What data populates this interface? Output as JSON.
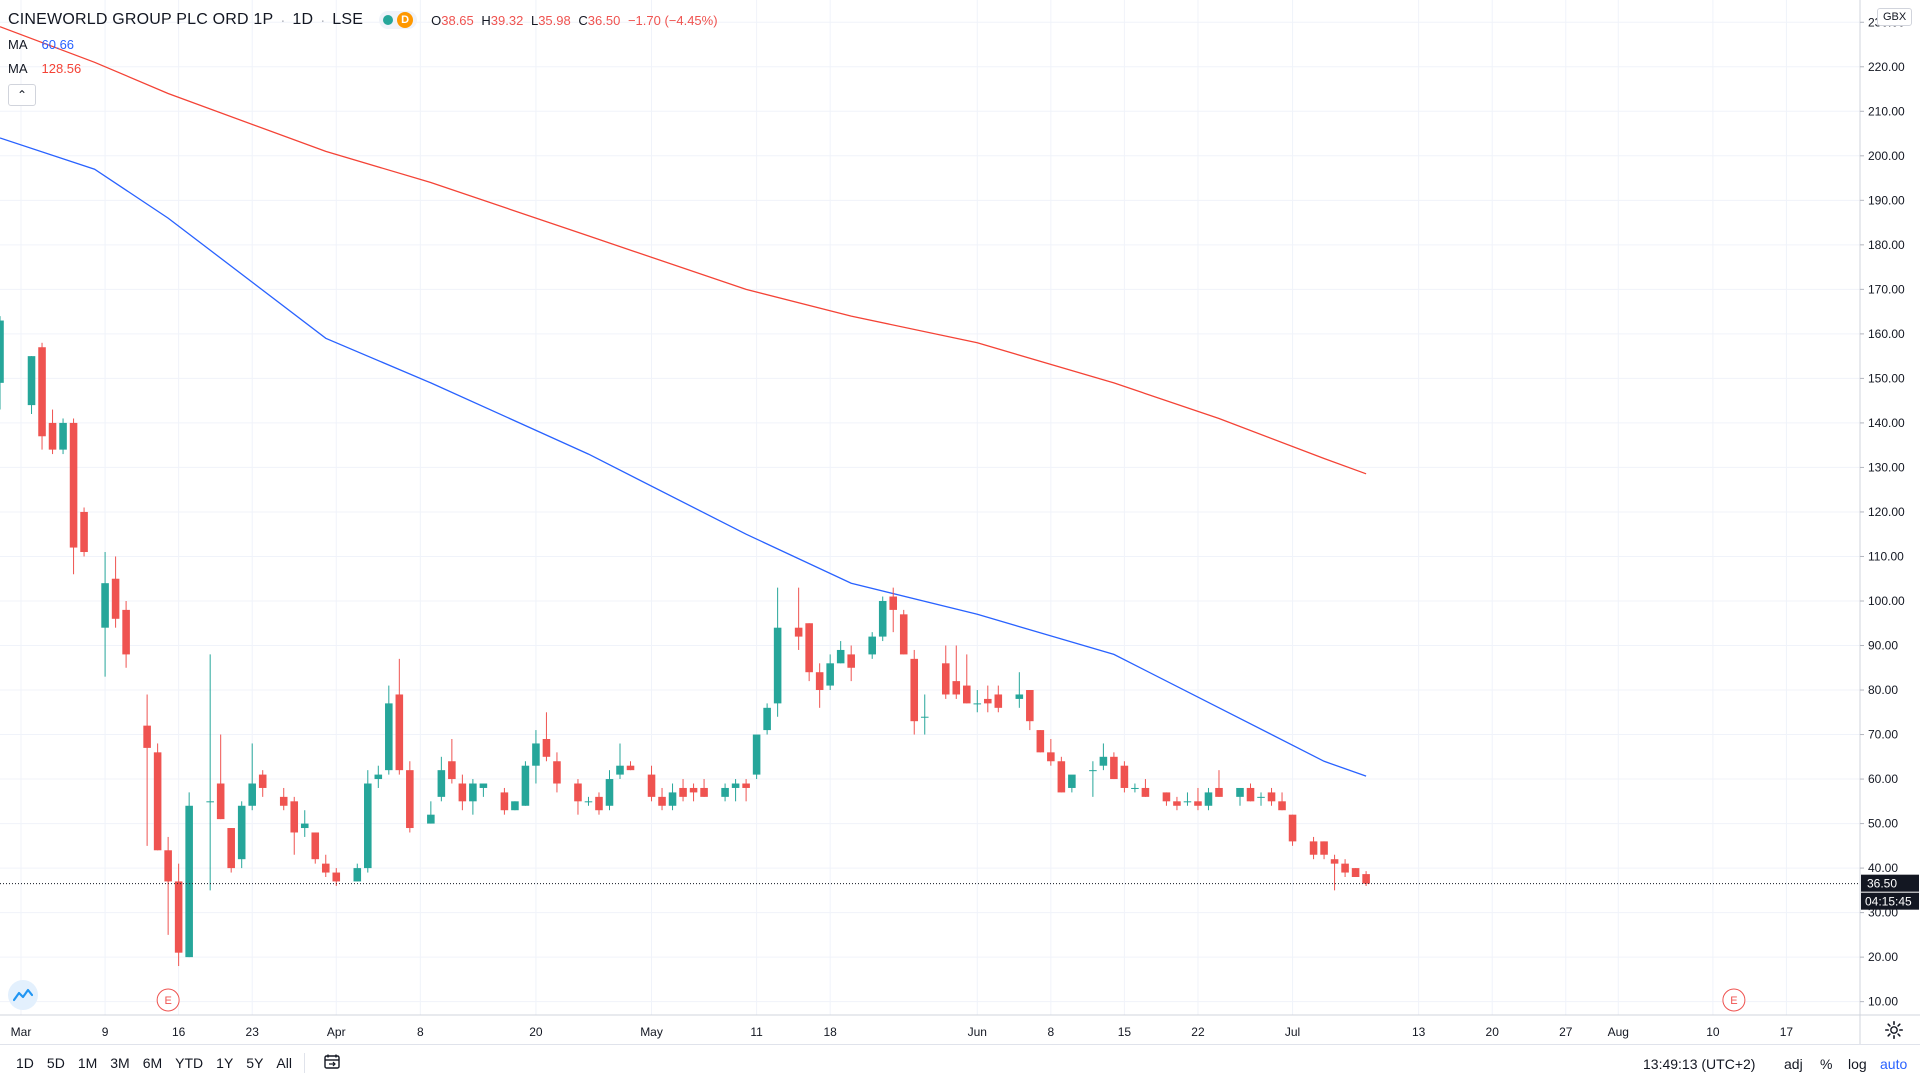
{
  "header": {
    "symbol": "CINEWORLD GROUP PLC ORD 1P",
    "interval": "1D",
    "exchange": "LSE",
    "d_label": "D",
    "ohlc": {
      "o_key": "O",
      "o_val": "38.65",
      "h_key": "H",
      "h_val": "39.32",
      "l_key": "L",
      "l_val": "35.98",
      "c_key": "C",
      "c_val": "36.50",
      "change": "−1.70 (−4.45%)"
    }
  },
  "indicators": [
    {
      "label": "MA",
      "value": "60.66",
      "color": "#2962ff"
    },
    {
      "label": "MA",
      "value": "128.56",
      "color": "#f44336"
    }
  ],
  "currency": "GBX",
  "last_price": {
    "value": "36.50",
    "countdown": "04:15:45"
  },
  "bottom": {
    "ranges": [
      "1D",
      "5D",
      "1M",
      "3M",
      "6M",
      "YTD",
      "1Y",
      "5Y",
      "All"
    ],
    "time": "13:49:13 (UTC+2)",
    "adj": "adj",
    "percent": "%",
    "log": "log",
    "auto": "auto"
  },
  "chart_data": {
    "type": "candlestick",
    "title": "CINEWORLD GROUP PLC ORD 1P · 1D · LSE",
    "ylabel": "GBX",
    "ylim": [
      7,
      235
    ],
    "y_ticks": [
      10,
      20,
      30,
      40,
      50,
      60,
      70,
      80,
      90,
      100,
      110,
      120,
      130,
      140,
      150,
      160,
      170,
      180,
      190,
      200,
      210,
      220,
      230
    ],
    "x_ticks": [
      {
        "day": 1,
        "label": "Mar"
      },
      {
        "day": 9,
        "label": "9"
      },
      {
        "day": 16,
        "label": "16"
      },
      {
        "day": 23,
        "label": "23"
      },
      {
        "day": 31,
        "label": "Apr"
      },
      {
        "day": 39,
        "label": "8"
      },
      {
        "day": 50,
        "label": "20"
      },
      {
        "day": 61,
        "label": "May"
      },
      {
        "day": 71,
        "label": "11"
      },
      {
        "day": 78,
        "label": "18"
      },
      {
        "day": 92,
        "label": "Jun"
      },
      {
        "day": 99,
        "label": "8"
      },
      {
        "day": 106,
        "label": "15"
      },
      {
        "day": 113,
        "label": "22"
      },
      {
        "day": 122,
        "label": "Jul"
      },
      {
        "day": 134,
        "label": "13"
      },
      {
        "day": 141,
        "label": "20"
      },
      {
        "day": 148,
        "label": "27"
      },
      {
        "day": 153,
        "label": "Aug"
      },
      {
        "day": 162,
        "label": "10"
      },
      {
        "day": 169,
        "label": "17"
      }
    ],
    "xlim": [
      -1,
      176
    ],
    "candles": [
      {
        "d": -1,
        "o": 149,
        "h": 164,
        "l": 143,
        "c": 163
      },
      {
        "d": 2,
        "o": 144,
        "h": 155,
        "l": 142,
        "c": 155
      },
      {
        "d": 3,
        "o": 157,
        "h": 158,
        "l": 134,
        "c": 137
      },
      {
        "d": 4,
        "o": 140,
        "h": 143,
        "l": 133,
        "c": 134
      },
      {
        "d": 5,
        "o": 134,
        "h": 141,
        "l": 133,
        "c": 140
      },
      {
        "d": 6,
        "o": 140,
        "h": 141,
        "l": 106,
        "c": 112
      },
      {
        "d": 7,
        "o": 120,
        "h": 121,
        "l": 110,
        "c": 111
      },
      {
        "d": 9,
        "o": 94,
        "h": 111,
        "l": 83,
        "c": 104
      },
      {
        "d": 10,
        "o": 105,
        "h": 110,
        "l": 94,
        "c": 96
      },
      {
        "d": 11,
        "o": 98,
        "h": 100,
        "l": 85,
        "c": 88
      },
      {
        "d": 13,
        "o": 72,
        "h": 79,
        "l": 45,
        "c": 67
      },
      {
        "d": 14,
        "o": 66,
        "h": 68,
        "l": 44,
        "c": 44
      },
      {
        "d": 15,
        "o": 44,
        "h": 47,
        "l": 25,
        "c": 37
      },
      {
        "d": 16,
        "o": 37,
        "h": 41,
        "l": 18,
        "c": 21
      },
      {
        "d": 17,
        "o": 20,
        "h": 57,
        "l": 20,
        "c": 54
      },
      {
        "d": 19,
        "o": 55,
        "h": 88,
        "l": 35,
        "c": 55
      },
      {
        "d": 20,
        "o": 59,
        "h": 70,
        "l": 51,
        "c": 51
      },
      {
        "d": 21,
        "o": 49,
        "h": 49,
        "l": 39,
        "c": 40
      },
      {
        "d": 22,
        "o": 42,
        "h": 55,
        "l": 40,
        "c": 54
      },
      {
        "d": 23,
        "o": 54,
        "h": 68,
        "l": 53,
        "c": 59
      },
      {
        "d": 24,
        "o": 61,
        "h": 62,
        "l": 56,
        "c": 58
      },
      {
        "d": 26,
        "o": 56,
        "h": 58,
        "l": 53,
        "c": 54
      },
      {
        "d": 27,
        "o": 55,
        "h": 56,
        "l": 43,
        "c": 48
      },
      {
        "d": 28,
        "o": 49,
        "h": 53,
        "l": 47,
        "c": 50
      },
      {
        "d": 29,
        "o": 48,
        "h": 48,
        "l": 41,
        "c": 42
      },
      {
        "d": 30,
        "o": 41,
        "h": 43,
        "l": 38,
        "c": 39
      },
      {
        "d": 31,
        "o": 39,
        "h": 40,
        "l": 36,
        "c": 37
      },
      {
        "d": 33,
        "o": 37,
        "h": 41,
        "l": 37,
        "c": 40
      },
      {
        "d": 34,
        "o": 40,
        "h": 62,
        "l": 39,
        "c": 59
      },
      {
        "d": 35,
        "o": 60,
        "h": 63,
        "l": 58,
        "c": 61
      },
      {
        "d": 36,
        "o": 62,
        "h": 81,
        "l": 61,
        "c": 77
      },
      {
        "d": 37,
        "o": 79,
        "h": 87,
        "l": 61,
        "c": 62
      },
      {
        "d": 38,
        "o": 62,
        "h": 64,
        "l": 48,
        "c": 49
      },
      {
        "d": 40,
        "o": 50,
        "h": 55,
        "l": 50,
        "c": 52
      },
      {
        "d": 41,
        "o": 56,
        "h": 65,
        "l": 55,
        "c": 62
      },
      {
        "d": 42,
        "o": 64,
        "h": 69,
        "l": 59,
        "c": 60
      },
      {
        "d": 43,
        "o": 59,
        "h": 61,
        "l": 53,
        "c": 55
      },
      {
        "d": 44,
        "o": 55,
        "h": 60,
        "l": 52,
        "c": 59
      },
      {
        "d": 45,
        "o": 58,
        "h": 59,
        "l": 56,
        "c": 59
      },
      {
        "d": 47,
        "o": 57,
        "h": 58,
        "l": 52,
        "c": 53
      },
      {
        "d": 48,
        "o": 53,
        "h": 55,
        "l": 53,
        "c": 55
      },
      {
        "d": 49,
        "o": 54,
        "h": 64,
        "l": 54,
        "c": 63
      },
      {
        "d": 50,
        "o": 63,
        "h": 71,
        "l": 59,
        "c": 68
      },
      {
        "d": 51,
        "o": 69,
        "h": 75,
        "l": 64,
        "c": 65
      },
      {
        "d": 52,
        "o": 64,
        "h": 66,
        "l": 57,
        "c": 59
      },
      {
        "d": 54,
        "o": 59,
        "h": 60,
        "l": 52,
        "c": 55
      },
      {
        "d": 55,
        "o": 55,
        "h": 56,
        "l": 54,
        "c": 55
      },
      {
        "d": 56,
        "o": 56,
        "h": 57,
        "l": 52,
        "c": 53
      },
      {
        "d": 57,
        "o": 54,
        "h": 62,
        "l": 53,
        "c": 60
      },
      {
        "d": 58,
        "o": 61,
        "h": 68,
        "l": 60,
        "c": 63
      },
      {
        "d": 59,
        "o": 63,
        "h": 64,
        "l": 62,
        "c": 62
      },
      {
        "d": 61,
        "o": 61,
        "h": 63,
        "l": 55,
        "c": 56
      },
      {
        "d": 62,
        "o": 56,
        "h": 58,
        "l": 53,
        "c": 54
      },
      {
        "d": 63,
        "o": 54,
        "h": 59,
        "l": 53,
        "c": 57
      },
      {
        "d": 64,
        "o": 58,
        "h": 60,
        "l": 55,
        "c": 56
      },
      {
        "d": 65,
        "o": 58,
        "h": 59,
        "l": 55,
        "c": 57
      },
      {
        "d": 66,
        "o": 58,
        "h": 60,
        "l": 56,
        "c": 56
      },
      {
        "d": 68,
        "o": 56,
        "h": 59,
        "l": 55,
        "c": 58
      },
      {
        "d": 69,
        "o": 58,
        "h": 60,
        "l": 55,
        "c": 59
      },
      {
        "d": 70,
        "o": 59,
        "h": 60,
        "l": 55,
        "c": 58
      },
      {
        "d": 71,
        "o": 61,
        "h": 70,
        "l": 60,
        "c": 70
      },
      {
        "d": 72,
        "o": 71,
        "h": 77,
        "l": 70,
        "c": 76
      },
      {
        "d": 73,
        "o": 77,
        "h": 103,
        "l": 74,
        "c": 94
      },
      {
        "d": 75,
        "o": 94,
        "h": 103,
        "l": 89,
        "c": 92
      },
      {
        "d": 76,
        "o": 95,
        "h": 95,
        "l": 82,
        "c": 84
      },
      {
        "d": 77,
        "o": 84,
        "h": 86,
        "l": 76,
        "c": 80
      },
      {
        "d": 78,
        "o": 81,
        "h": 88,
        "l": 80,
        "c": 86
      },
      {
        "d": 79,
        "o": 86,
        "h": 91,
        "l": 86,
        "c": 89
      },
      {
        "d": 80,
        "o": 88,
        "h": 90,
        "l": 82,
        "c": 85
      },
      {
        "d": 82,
        "o": 88,
        "h": 93,
        "l": 87,
        "c": 92
      },
      {
        "d": 83,
        "o": 92,
        "h": 101,
        "l": 91,
        "c": 100
      },
      {
        "d": 84,
        "o": 101,
        "h": 103,
        "l": 93,
        "c": 98
      },
      {
        "d": 85,
        "o": 97,
        "h": 98,
        "l": 88,
        "c": 88
      },
      {
        "d": 86,
        "o": 87,
        "h": 89,
        "l": 70,
        "c": 73
      },
      {
        "d": 87,
        "o": 74,
        "h": 79,
        "l": 70,
        "c": 74
      },
      {
        "d": 89,
        "o": 86,
        "h": 90,
        "l": 78,
        "c": 79
      },
      {
        "d": 90,
        "o": 82,
        "h": 90,
        "l": 78,
        "c": 79
      },
      {
        "d": 91,
        "o": 81,
        "h": 88,
        "l": 77,
        "c": 77
      },
      {
        "d": 92,
        "o": 77,
        "h": 80,
        "l": 75,
        "c": 77
      },
      {
        "d": 93,
        "o": 78,
        "h": 81,
        "l": 75,
        "c": 77
      },
      {
        "d": 94,
        "o": 79,
        "h": 81,
        "l": 75,
        "c": 76
      },
      {
        "d": 96,
        "o": 78,
        "h": 84,
        "l": 76,
        "c": 79
      },
      {
        "d": 97,
        "o": 80,
        "h": 80,
        "l": 71,
        "c": 73
      },
      {
        "d": 98,
        "o": 71,
        "h": 71,
        "l": 66,
        "c": 66
      },
      {
        "d": 99,
        "o": 66,
        "h": 69,
        "l": 63,
        "c": 64
      },
      {
        "d": 100,
        "o": 64,
        "h": 65,
        "l": 57,
        "c": 57
      },
      {
        "d": 101,
        "o": 58,
        "h": 60,
        "l": 57,
        "c": 61
      },
      {
        "d": 103,
        "o": 62,
        "h": 64,
        "l": 56,
        "c": 62
      },
      {
        "d": 104,
        "o": 63,
        "h": 68,
        "l": 62,
        "c": 65
      },
      {
        "d": 105,
        "o": 65,
        "h": 66,
        "l": 60,
        "c": 60
      },
      {
        "d": 106,
        "o": 63,
        "h": 64,
        "l": 57,
        "c": 58
      },
      {
        "d": 107,
        "o": 58,
        "h": 59,
        "l": 57,
        "c": 58
      },
      {
        "d": 108,
        "o": 58,
        "h": 60,
        "l": 56,
        "c": 56
      },
      {
        "d": 110,
        "o": 57,
        "h": 57,
        "l": 54,
        "c": 55
      },
      {
        "d": 111,
        "o": 55,
        "h": 56,
        "l": 53,
        "c": 54
      },
      {
        "d": 112,
        "o": 55,
        "h": 57,
        "l": 54,
        "c": 55
      },
      {
        "d": 113,
        "o": 55,
        "h": 58,
        "l": 53,
        "c": 54
      },
      {
        "d": 114,
        "o": 54,
        "h": 58,
        "l": 53,
        "c": 57
      },
      {
        "d": 115,
        "o": 58,
        "h": 62,
        "l": 56,
        "c": 56
      },
      {
        "d": 117,
        "o": 56,
        "h": 58,
        "l": 54,
        "c": 58
      },
      {
        "d": 118,
        "o": 58,
        "h": 59,
        "l": 55,
        "c": 55
      },
      {
        "d": 119,
        "o": 56,
        "h": 57,
        "l": 54,
        "c": 56
      },
      {
        "d": 120,
        "o": 57,
        "h": 58,
        "l": 54,
        "c": 55
      },
      {
        "d": 121,
        "o": 55,
        "h": 57,
        "l": 53,
        "c": 53
      },
      {
        "d": 122,
        "o": 52,
        "h": 52,
        "l": 45,
        "c": 46
      },
      {
        "d": 124,
        "o": 46,
        "h": 47,
        "l": 42,
        "c": 43
      },
      {
        "d": 125,
        "o": 46,
        "h": 46,
        "l": 42,
        "c": 43
      },
      {
        "d": 126,
        "o": 42,
        "h": 43,
        "l": 35,
        "c": 41
      },
      {
        "d": 127,
        "o": 41,
        "h": 42,
        "l": 38,
        "c": 39
      },
      {
        "d": 128,
        "o": 40,
        "h": 40,
        "l": 38,
        "c": 38
      },
      {
        "d": 129,
        "o": 38.65,
        "h": 39.32,
        "l": 35.98,
        "c": 36.5
      }
    ],
    "series": [
      {
        "name": "MA",
        "color": "#2962ff",
        "x": [
          -1,
          8,
          15,
          30,
          40,
          55,
          70,
          80,
          92,
          105,
          115,
          125,
          129
        ],
        "y": [
          204,
          197,
          186,
          159,
          149,
          133,
          115,
          104,
          97,
          88,
          76,
          64,
          60.66
        ]
      },
      {
        "name": "MA",
        "color": "#f44336",
        "x": [
          -1,
          8,
          15,
          30,
          40,
          55,
          70,
          80,
          92,
          105,
          115,
          125,
          129
        ],
        "y": [
          229,
          221,
          214,
          201,
          194,
          182,
          170,
          164,
          158,
          149,
          141,
          132,
          128.56
        ]
      }
    ],
    "earnings_markers": [
      {
        "d": 15,
        "label": "E"
      },
      {
        "d": 164,
        "label": "E"
      }
    ],
    "last_price_line": 36.5,
    "up_color": "#26a69a",
    "down_color": "#ef5350"
  }
}
